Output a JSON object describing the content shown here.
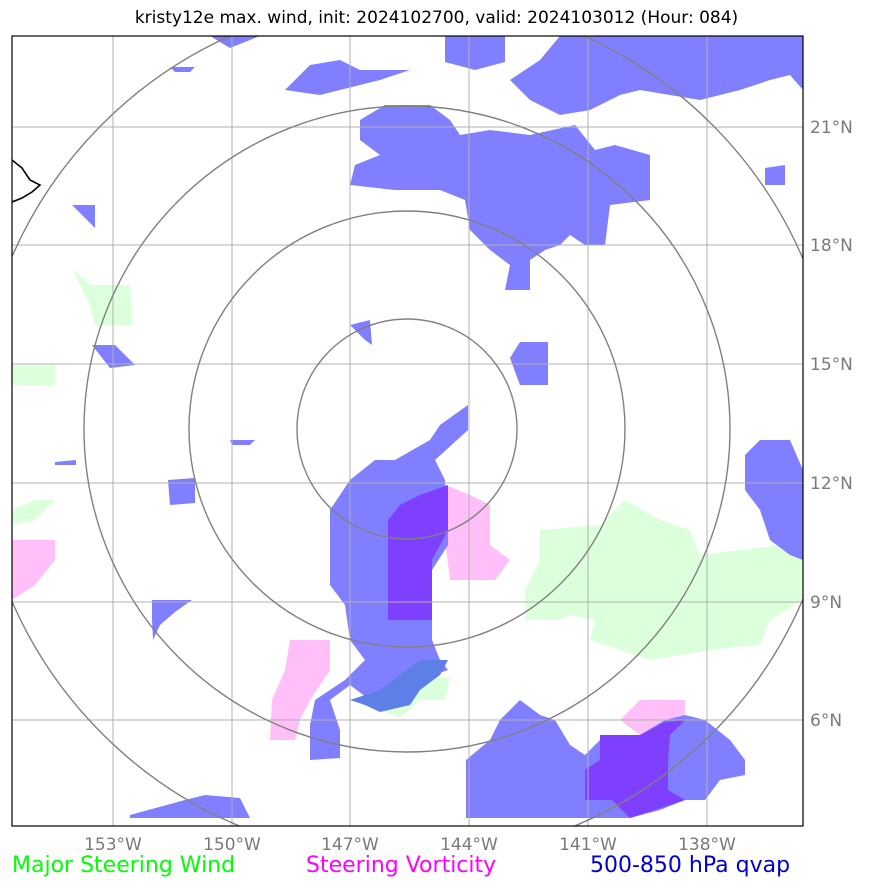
{
  "title": "kristy12e max. wind, init: 2024102700, valid: 2024103012 (Hour: 084)",
  "lon_labels": [
    "153°W",
    "150°W",
    "147°W",
    "144°W",
    "141°W",
    "138°W"
  ],
  "lat_labels": [
    "21°N",
    "18°N",
    "15°N",
    "12°N",
    "9°N",
    "6°N"
  ],
  "legend": {
    "wind": "Major Steering Wind",
    "vorticity": "Steering Vorticity",
    "qvap": "500-850 hPa qvap"
  },
  "colors": {
    "wind": "#00ff00",
    "vorticity": "#ff00ff",
    "qvap": "#0000cd",
    "wind_fill": "#dcffdc",
    "vorticity_fill": "#ffbff8",
    "qvap_fill": "#7f7fff",
    "overlap_fill": "#7f3fff"
  }
}
